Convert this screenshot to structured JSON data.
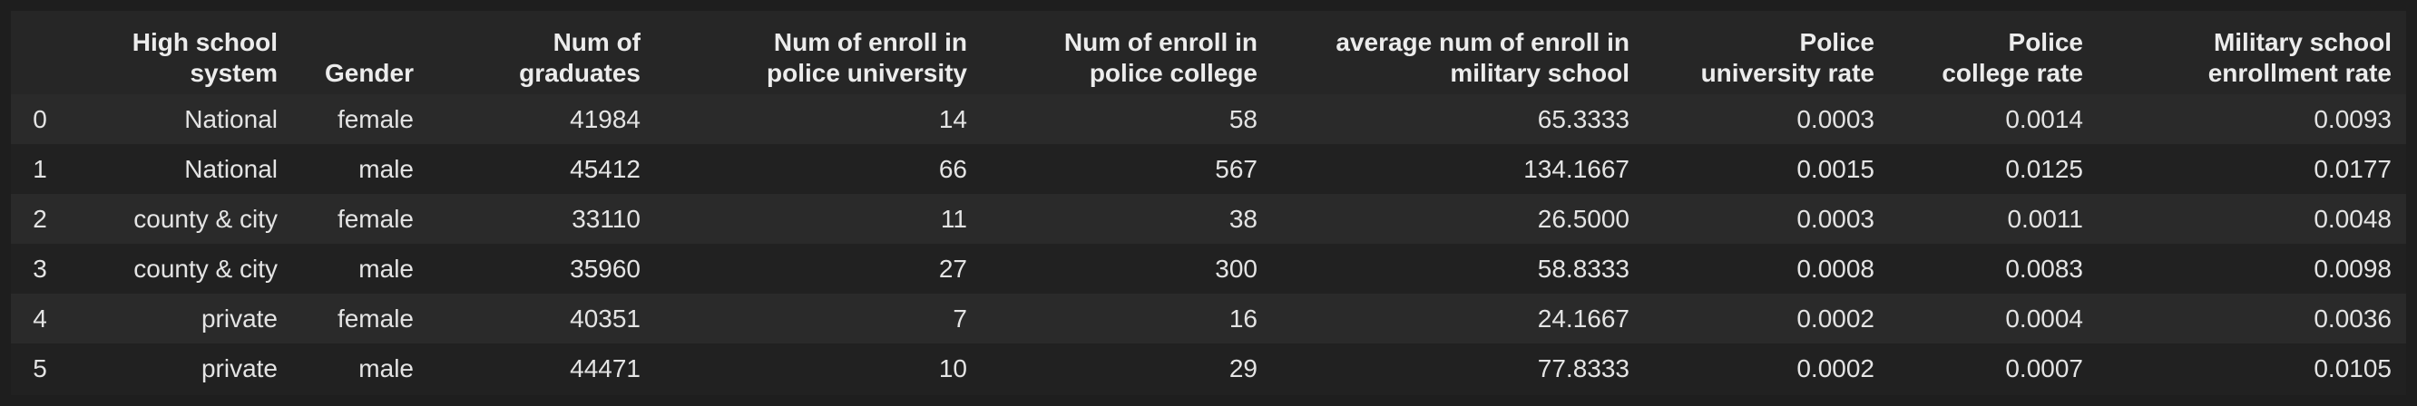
{
  "table": {
    "columns": [
      "High school system",
      "Gender",
      "Num of graduates",
      "Num of enroll in police university",
      "Num of enroll in police college",
      "average num of enroll in military school",
      "Police university rate",
      "Police college rate",
      "Military school enrollment rate"
    ],
    "header_lines": [
      [
        "High school",
        "system"
      ],
      [
        "Gender"
      ],
      [
        "Num of",
        "graduates"
      ],
      [
        "Num of enroll in",
        "police university"
      ],
      [
        "Num of enroll in",
        "police college"
      ],
      [
        "average num of enroll in",
        "military school"
      ],
      [
        "Police",
        "university rate"
      ],
      [
        "Police",
        "college rate"
      ],
      [
        "Military school",
        "enrollment rate"
      ]
    ],
    "rows": [
      {
        "index": "0",
        "cells": [
          "National",
          "female",
          "41984",
          "14",
          "58",
          "65.3333",
          "0.0003",
          "0.0014",
          "0.0093"
        ]
      },
      {
        "index": "1",
        "cells": [
          "National",
          "male",
          "45412",
          "66",
          "567",
          "134.1667",
          "0.0015",
          "0.0125",
          "0.0177"
        ]
      },
      {
        "index": "2",
        "cells": [
          "county & city",
          "female",
          "33110",
          "11",
          "38",
          "26.5000",
          "0.0003",
          "0.0011",
          "0.0048"
        ]
      },
      {
        "index": "3",
        "cells": [
          "county & city",
          "male",
          "35960",
          "27",
          "300",
          "58.8333",
          "0.0008",
          "0.0083",
          "0.0098"
        ]
      },
      {
        "index": "4",
        "cells": [
          "private",
          "female",
          "40351",
          "7",
          "16",
          "24.1667",
          "0.0002",
          "0.0004",
          "0.0036"
        ]
      },
      {
        "index": "5",
        "cells": [
          "private",
          "male",
          "44471",
          "10",
          "29",
          "77.8333",
          "0.0002",
          "0.0007",
          "0.0105"
        ]
      }
    ]
  }
}
